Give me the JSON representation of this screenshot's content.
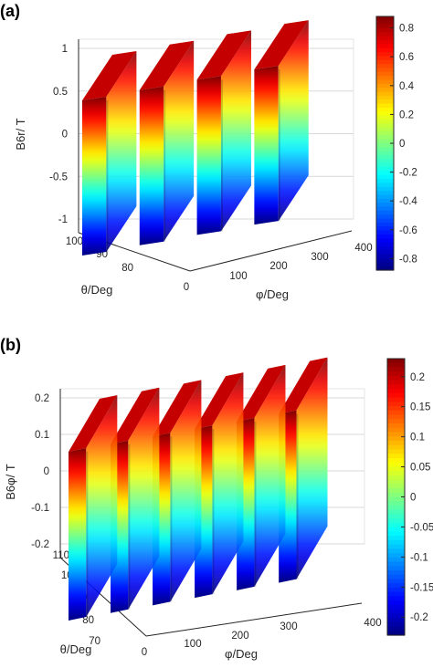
{
  "chart_data": [
    {
      "type": "surface",
      "panel_label": "(a)",
      "title": "",
      "xlabel": "φ/Deg",
      "ylabel": "θ/Deg",
      "zlabel": "B6r/ T",
      "x_ticks": [
        "0",
        "100",
        "200",
        "300",
        "400"
      ],
      "y_ticks": [
        "80",
        "90",
        "100"
      ],
      "z_ticks": [
        "-1",
        "-0.5",
        "0",
        "0.5",
        "1"
      ],
      "colorbar_ticks": [
        "0.8",
        "0.6",
        "0.4",
        "0.2",
        "0",
        "-0.2",
        "-0.4",
        "-0.6",
        "-0.8"
      ],
      "xlim": [
        0,
        400
      ],
      "ylim": [
        72,
        108
      ],
      "zlim": [
        -1,
        1
      ],
      "clim": [
        -0.88,
        0.88
      ],
      "colormap": "jet",
      "grid": true,
      "n_pole_periods": 4,
      "series": [
        {
          "x": [
            0,
            10,
            20,
            30,
            38,
            45,
            52,
            60,
            70,
            80,
            90,
            100,
            110,
            120,
            128,
            135,
            142,
            150,
            160,
            170,
            180,
            190,
            200,
            210,
            218,
            225,
            232,
            240,
            250,
            260,
            270,
            280,
            290,
            300,
            308,
            315,
            322,
            330,
            340,
            350,
            360
          ],
          "values": [
            0.86,
            0.85,
            0.84,
            0.83,
            0.7,
            0.0,
            -0.7,
            -0.83,
            -0.84,
            -0.85,
            -0.86,
            0.86,
            0.85,
            0.84,
            0.83,
            0.7,
            0.0,
            -0.7,
            -0.83,
            -0.84,
            -0.85,
            -0.86,
            0.86,
            0.85,
            0.84,
            0.83,
            0.7,
            0.0,
            -0.7,
            -0.83,
            -0.84,
            -0.85,
            -0.86,
            0.86,
            0.85,
            0.84,
            0.83,
            0.7,
            0.0,
            -0.7,
            -0.86
          ]
        }
      ]
    },
    {
      "type": "surface",
      "panel_label": "(b)",
      "title": "",
      "xlabel": "φ/Deg",
      "ylabel": "θ/Deg",
      "zlabel": "B6φ/ T",
      "x_ticks": [
        "0",
        "100",
        "200",
        "300",
        "400"
      ],
      "y_ticks": [
        "70",
        "80",
        "90",
        "100",
        "110"
      ],
      "z_ticks": [
        "-0.2",
        "-0.1",
        "0",
        "0.1",
        "0.2"
      ],
      "colorbar_ticks": [
        "0.2",
        "0.15",
        "0.1",
        "0.05",
        "0",
        "-0.05",
        "-0.1",
        "-0.15",
        "-0.2"
      ],
      "xlim": [
        0,
        400
      ],
      "ylim": [
        68,
        112
      ],
      "zlim": [
        -0.25,
        0.25
      ],
      "clim": [
        -0.23,
        0.23
      ],
      "colormap": "jet",
      "grid": true,
      "n_pole_periods": 6,
      "series": [
        {
          "x": [
            0,
            10,
            20,
            25,
            30,
            35,
            40,
            50,
            55,
            60,
            70,
            80,
            85,
            90,
            95,
            100,
            110,
            115,
            120,
            130,
            140,
            145,
            150,
            155,
            160,
            170,
            175,
            180,
            190,
            200,
            205,
            210,
            215,
            220,
            230,
            235,
            240,
            250,
            260,
            265,
            270,
            275,
            280,
            290,
            295,
            300,
            310,
            320,
            325,
            330,
            335,
            340,
            350,
            355,
            360
          ],
          "values": [
            0.22,
            0.21,
            0.2,
            0.1,
            0.0,
            -0.1,
            -0.2,
            -0.21,
            -0.22,
            0.22,
            0.21,
            0.2,
            0.1,
            0.0,
            -0.1,
            -0.2,
            -0.21,
            -0.22,
            0.22,
            0.21,
            0.2,
            0.1,
            0.0,
            -0.1,
            -0.2,
            -0.21,
            -0.22,
            0.22,
            0.21,
            0.2,
            0.1,
            0.0,
            -0.1,
            -0.2,
            -0.21,
            -0.22,
            0.22,
            0.21,
            0.2,
            0.1,
            0.0,
            -0.1,
            -0.2,
            -0.21,
            -0.22,
            0.22,
            0.21,
            0.2,
            0.1,
            0.0,
            -0.1,
            -0.2,
            -0.21,
            -0.22,
            0.22
          ]
        }
      ]
    }
  ]
}
